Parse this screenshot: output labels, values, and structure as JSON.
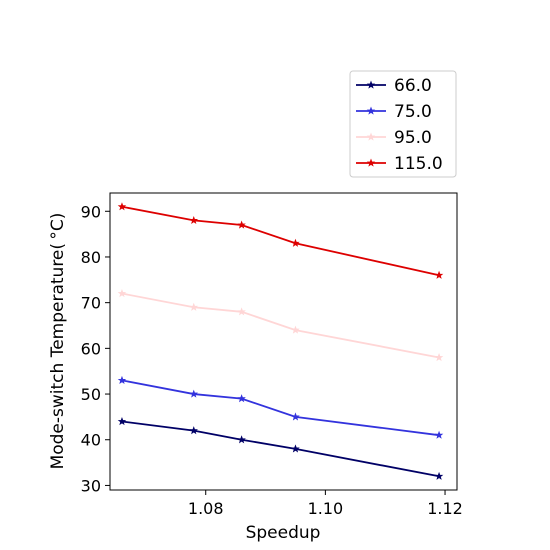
{
  "chart_data": {
    "type": "line",
    "title": "",
    "xlabel": "Speedup",
    "ylabel": "Mode-switch Temperature( $^\\circ$C)",
    "ylabel_display": "Mode-switch Temperature( °C)",
    "x": [
      1.066,
      1.078,
      1.086,
      1.095,
      1.119
    ],
    "xlim": [
      1.064,
      1.122
    ],
    "ylim": [
      29,
      94
    ],
    "xticks": [
      1.08,
      1.1,
      1.12
    ],
    "xtick_labels": [
      "1.08",
      "1.10",
      "1.12"
    ],
    "yticks": [
      30,
      40,
      50,
      60,
      70,
      80,
      90
    ],
    "ytick_labels": [
      "30",
      "40",
      "50",
      "60",
      "70",
      "80",
      "90"
    ],
    "grid": false,
    "marker": "star",
    "legend_position": "above-right",
    "series": [
      {
        "name": "66.0",
        "color": "#000066",
        "values": [
          44,
          42,
          40,
          38,
          32
        ]
      },
      {
        "name": "75.0",
        "color": "#3333dd",
        "values": [
          53,
          50,
          49,
          45,
          41
        ]
      },
      {
        "name": "95.0",
        "color": "#ffd6d6",
        "values": [
          72,
          69,
          68,
          64,
          58
        ]
      },
      {
        "name": "115.0",
        "color": "#dd0000",
        "values": [
          91,
          88,
          87,
          83,
          76
        ]
      }
    ]
  }
}
